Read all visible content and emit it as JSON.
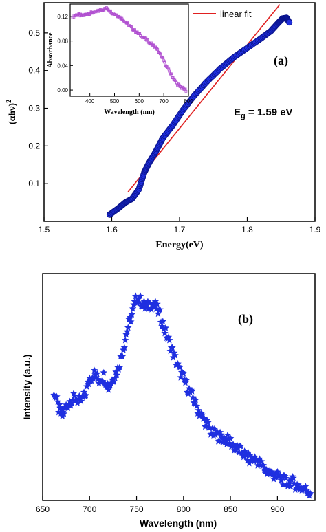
{
  "colors": {
    "marker": "#1f2fe0",
    "fit": "#e02020",
    "inset_marker": "#b04fd0",
    "axis": "#000000"
  },
  "chart_data": [
    {
      "type": "scatter",
      "panel_label": "(a)",
      "xlabel": "Energy(eV)",
      "ylabel_main": "(αhν)",
      "ylabel_sup": "2",
      "xlim": [
        1.5,
        1.9
      ],
      "ylim": [
        0,
        0.58
      ],
      "xticks": [
        "1.5",
        "1.6",
        "1.7",
        "1.8",
        "1.9"
      ],
      "yticks": [
        "0.1",
        "0.2",
        "0.3",
        "0.4",
        "0.5"
      ],
      "annotation_main": "E",
      "annotation_sub": "g",
      "annotation_rest": " = 1.59 eV",
      "legend_label": "linear fit",
      "series": [
        {
          "x": [
            1.597,
            1.61,
            1.62,
            1.63,
            1.64,
            1.648,
            1.655,
            1.665,
            1.675,
            1.69,
            1.705,
            1.72,
            1.74,
            1.76,
            1.78,
            1.8,
            1.82,
            1.835,
            1.845,
            1.852,
            1.858,
            1.862
          ],
          "y": [
            0.018,
            0.035,
            0.05,
            0.06,
            0.085,
            0.13,
            0.155,
            0.185,
            0.22,
            0.255,
            0.295,
            0.33,
            0.37,
            0.405,
            0.435,
            0.46,
            0.485,
            0.505,
            0.525,
            0.538,
            0.54,
            0.528
          ]
        }
      ],
      "fit_line": {
        "x": [
          1.624,
          1.848
        ],
        "y": [
          0.078,
          0.575
        ]
      }
    },
    {
      "type": "line",
      "role": "inset",
      "xlabel": "Wavelength (nm)",
      "ylabel": "Absorbance",
      "xlim": [
        320,
        800
      ],
      "ylim": [
        -0.01,
        0.14
      ],
      "xticks": [
        "400",
        "500",
        "600",
        "700",
        "800"
      ],
      "yticks": [
        "0.00",
        "0.04",
        "0.08",
        "0.12"
      ],
      "x": [
        330,
        350,
        370,
        390,
        410,
        430,
        450,
        470,
        490,
        510,
        530,
        550,
        570,
        590,
        610,
        630,
        650,
        670,
        690,
        710,
        730,
        750,
        770,
        790
      ],
      "y": [
        0.12,
        0.123,
        0.121,
        0.124,
        0.126,
        0.128,
        0.131,
        0.133,
        0.126,
        0.122,
        0.116,
        0.109,
        0.101,
        0.094,
        0.088,
        0.082,
        0.075,
        0.068,
        0.055,
        0.04,
        0.025,
        0.012,
        0.004,
        0.0
      ]
    },
    {
      "type": "scatter",
      "panel_label": "(b)",
      "xlabel": "Wavelength (nm)",
      "ylabel": "Intensity (a.u.)",
      "xlim": [
        650,
        940
      ],
      "ylim": [
        0,
        1.0
      ],
      "xticks": [
        "650",
        "700",
        "750",
        "800",
        "850",
        "900"
      ],
      "x": [
        662,
        667,
        671,
        675,
        680,
        685,
        690,
        695,
        700,
        705,
        710,
        715,
        720,
        725,
        730,
        735,
        740,
        745,
        750,
        755,
        760,
        765,
        770,
        775,
        780,
        785,
        790,
        795,
        800,
        805,
        810,
        815,
        820,
        825,
        830,
        835,
        840,
        845,
        850,
        855,
        860,
        865,
        870,
        875,
        880,
        885,
        890,
        895,
        900,
        905,
        910,
        915,
        920,
        925,
        930,
        935
      ],
      "y": [
        0.48,
        0.4,
        0.37,
        0.41,
        0.44,
        0.45,
        0.43,
        0.46,
        0.54,
        0.56,
        0.53,
        0.55,
        0.5,
        0.54,
        0.58,
        0.66,
        0.76,
        0.83,
        0.91,
        0.89,
        0.86,
        0.88,
        0.87,
        0.83,
        0.76,
        0.7,
        0.64,
        0.58,
        0.54,
        0.49,
        0.45,
        0.4,
        0.36,
        0.33,
        0.29,
        0.28,
        0.27,
        0.26,
        0.25,
        0.22,
        0.21,
        0.19,
        0.17,
        0.17,
        0.16,
        0.13,
        0.11,
        0.1,
        0.09,
        0.08,
        0.06,
        0.07,
        0.05,
        0.04,
        0.03,
        0.02
      ]
    }
  ]
}
